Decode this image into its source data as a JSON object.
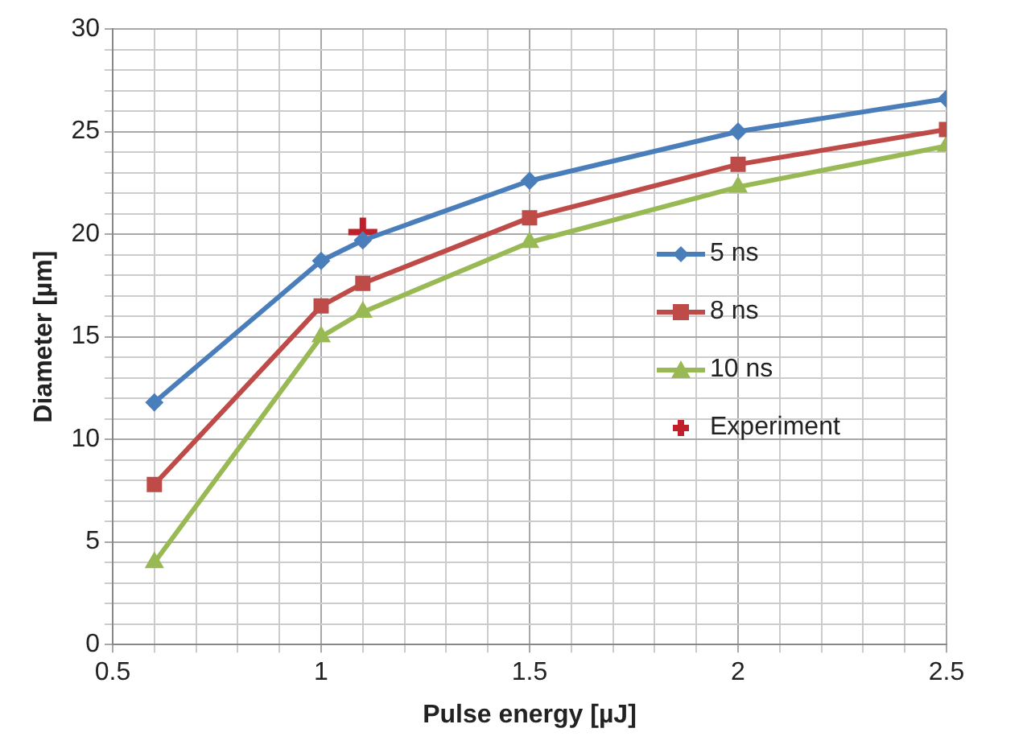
{
  "chart_data": {
    "type": "line",
    "xlabel": "Pulse energy [µJ]",
    "ylabel": "Diameter [µm]",
    "x": [
      0.6,
      1.0,
      1.1,
      1.5,
      2.0,
      2.5
    ],
    "series": [
      {
        "name": "5 ns",
        "color": "#4a7ebb",
        "marker": "diamond",
        "values": [
          11.8,
          18.7,
          19.7,
          22.6,
          25.0,
          26.6
        ]
      },
      {
        "name": "8 ns",
        "color": "#be4b48",
        "marker": "square",
        "values": [
          7.8,
          16.5,
          17.6,
          20.8,
          23.4,
          25.1
        ]
      },
      {
        "name": "10 ns",
        "color": "#98b954",
        "marker": "triangle",
        "values": [
          4.0,
          15.0,
          16.2,
          19.6,
          22.3,
          24.3
        ]
      },
      {
        "name": "Experiment",
        "type": "scatter",
        "color": "#c0202a",
        "marker": "cross",
        "x": [
          1.1
        ],
        "values": [
          20.1
        ]
      }
    ],
    "xlim": [
      0.5,
      2.5
    ],
    "xticks": [
      0.5,
      {
        "value": 0.6,
        "label": null
      },
      {
        "value": 0.7,
        "label": null
      },
      {
        "value": 0.8,
        "label": null
      },
      {
        "value": 0.9,
        "label": null
      },
      1,
      {
        "value": 1.1,
        "label": null
      },
      {
        "value": 1.2,
        "label": null
      },
      {
        "value": 1.3,
        "label": null
      },
      {
        "value": 1.4,
        "label": null
      },
      1.5,
      {
        "value": 1.6,
        "label": null
      },
      {
        "value": 1.7,
        "label": null
      },
      {
        "value": 1.8,
        "label": null
      },
      {
        "value": 1.9,
        "label": null
      },
      2,
      {
        "value": 2.1,
        "label": null
      },
      {
        "value": 2.2,
        "label": null
      },
      {
        "value": 2.3,
        "label": null
      },
      {
        "value": 2.4,
        "label": null
      },
      2.5
    ],
    "ylim": [
      0,
      30
    ],
    "yticks": [
      0,
      {
        "value": 1,
        "label": null
      },
      {
        "value": 2,
        "label": null
      },
      {
        "value": 3,
        "label": null
      },
      {
        "value": 4,
        "label": null
      },
      5,
      {
        "value": 6,
        "label": null
      },
      {
        "value": 7,
        "label": null
      },
      {
        "value": 8,
        "label": null
      },
      {
        "value": 9,
        "label": null
      },
      10,
      {
        "value": 11,
        "label": null
      },
      {
        "value": 12,
        "label": null
      },
      {
        "value": 13,
        "label": null
      },
      {
        "value": 14,
        "label": null
      },
      15,
      {
        "value": 16,
        "label": null
      },
      {
        "value": 17,
        "label": null
      },
      {
        "value": 18,
        "label": null
      },
      {
        "value": 19,
        "label": null
      },
      20,
      {
        "value": 21,
        "label": null
      },
      {
        "value": 22,
        "label": null
      },
      {
        "value": 23,
        "label": null
      },
      {
        "value": 24,
        "label": null
      },
      25,
      {
        "value": 26,
        "label": null
      },
      {
        "value": 27,
        "label": null
      },
      {
        "value": 28,
        "label": null
      },
      {
        "value": 29,
        "label": null
      },
      30
    ],
    "grid": true,
    "legend": "right",
    "line_style": "solid"
  }
}
